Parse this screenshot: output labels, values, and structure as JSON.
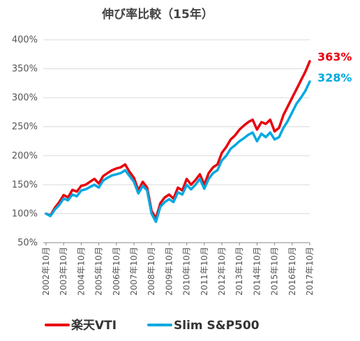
{
  "chart_data": {
    "type": "line",
    "title": "伸び率比較（15年）",
    "ylim": [
      50,
      400
    ],
    "y_unit": "%",
    "yticks": [
      "50%",
      "100%",
      "150%",
      "200%",
      "250%",
      "300%",
      "350%",
      "400%"
    ],
    "x_categories": [
      "2002年10月",
      "2003年10月",
      "2004年10月",
      "2005年10月",
      "2006年10月",
      "2007年10月",
      "2008年10月",
      "2009年10月",
      "2010年10月",
      "2011年10月",
      "2012年10月",
      "2013年10月",
      "2014年10月",
      "2015年10月",
      "2016年10月",
      "2017年10月"
    ],
    "grid": "horizontal",
    "legend_position": "bottom",
    "x": [
      "2002-10",
      "2003-01",
      "2003-04",
      "2003-07",
      "2003-10",
      "2004-01",
      "2004-04",
      "2004-07",
      "2004-10",
      "2005-01",
      "2005-04",
      "2005-07",
      "2005-10",
      "2006-01",
      "2006-04",
      "2006-07",
      "2006-10",
      "2007-01",
      "2007-04",
      "2007-07",
      "2007-10",
      "2008-01",
      "2008-04",
      "2008-07",
      "2008-10",
      "2009-01",
      "2009-04",
      "2009-07",
      "2009-10",
      "2010-01",
      "2010-04",
      "2010-07",
      "2010-10",
      "2011-01",
      "2011-04",
      "2011-07",
      "2011-10",
      "2012-01",
      "2012-04",
      "2012-07",
      "2012-10",
      "2013-01",
      "2013-04",
      "2013-07",
      "2013-10",
      "2014-01",
      "2014-04",
      "2014-07",
      "2014-10",
      "2015-01",
      "2015-04",
      "2015-07",
      "2015-10",
      "2016-01",
      "2016-04",
      "2016-07",
      "2016-10",
      "2017-01",
      "2017-04",
      "2017-07",
      "2017-10"
    ],
    "series": [
      {
        "name": "楽天VTI",
        "color": "#e8000b",
        "end_label": "363%",
        "values": [
          100,
          97,
          110,
          120,
          132,
          128,
          141,
          138,
          148,
          150,
          155,
          160,
          152,
          165,
          170,
          175,
          178,
          180,
          185,
          172,
          162,
          140,
          155,
          145,
          105,
          92,
          118,
          128,
          133,
          126,
          145,
          140,
          160,
          150,
          158,
          168,
          150,
          170,
          180,
          185,
          205,
          215,
          228,
          235,
          245,
          252,
          258,
          262,
          245,
          258,
          255,
          262,
          242,
          248,
          270,
          285,
          300,
          315,
          330,
          345,
          363
        ]
      },
      {
        "name": "Slim S&P500",
        "color": "#00a8e0",
        "end_label": "328%",
        "values": [
          100,
          96,
          107,
          115,
          126,
          123,
          133,
          130,
          140,
          142,
          146,
          150,
          145,
          157,
          162,
          166,
          168,
          170,
          175,
          165,
          155,
          135,
          148,
          140,
          100,
          86,
          112,
          120,
          125,
          120,
          137,
          133,
          150,
          142,
          150,
          160,
          143,
          160,
          170,
          175,
          192,
          200,
          212,
          218,
          225,
          230,
          236,
          240,
          225,
          238,
          232,
          240,
          228,
          232,
          248,
          260,
          275,
          290,
          300,
          312,
          328
        ]
      }
    ]
  }
}
